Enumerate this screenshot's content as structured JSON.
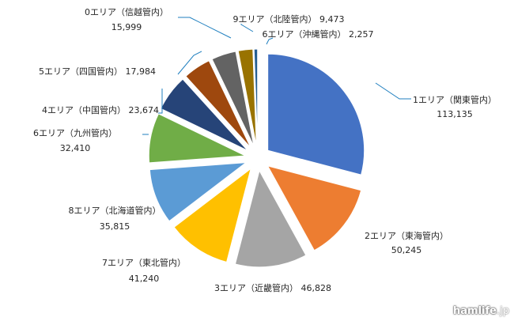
{
  "chart_data": {
    "type": "pie",
    "title": "",
    "exploded": true,
    "slices": [
      {
        "name": "1エリア（関東管内）",
        "value": 113135,
        "value_label": "113,135",
        "color": "#4472C4"
      },
      {
        "name": "2エリア（東海管内）",
        "value": 50245,
        "value_label": "50,245",
        "color": "#ED7D31"
      },
      {
        "name": "3エリア（近畿管内）",
        "value": 46828,
        "value_label": "46,828",
        "color": "#A5A5A5"
      },
      {
        "name": "7エリア（東北管内）",
        "value": 41240,
        "value_label": "41,240",
        "color": "#FFC000"
      },
      {
        "name": "8エリア（北海道管内）",
        "value": 35815,
        "value_label": "35,815",
        "color": "#5B9BD5"
      },
      {
        "name": "6エリア（九州管内）",
        "value": 32410,
        "value_label": "32,410",
        "color": "#70AD47"
      },
      {
        "name": "4エリア（中国管内）",
        "value": 23674,
        "value_label": "23,674",
        "color": "#264478"
      },
      {
        "name": "5エリア（四国管内）",
        "value": 17984,
        "value_label": "17,984",
        "color": "#9E480E"
      },
      {
        "name": "0エリア（信越管内）",
        "value": 15999,
        "value_label": "15,999",
        "color": "#636363"
      },
      {
        "name": "9エリア（北陸管内）",
        "value": 9473,
        "value_label": "9,473",
        "color": "#997300"
      },
      {
        "name": "6エリア（沖縄管内）",
        "value": 2257,
        "value_label": "2,257",
        "color": "#255E91"
      }
    ]
  },
  "watermark": {
    "main": "hamlife",
    "suffix": ".jp"
  }
}
